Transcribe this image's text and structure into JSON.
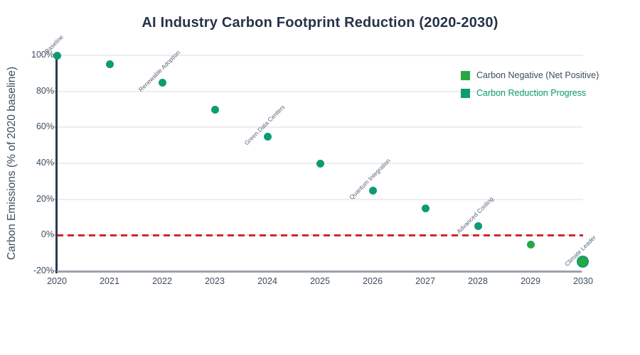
{
  "title": "AI Industry Carbon Footprint Reduction (2020-2030)",
  "y_axis": {
    "label": "Carbon Emissions (% of 2020 baseline)"
  },
  "chart_data": {
    "type": "scatter",
    "title": "AI Industry Carbon Footprint Reduction (2020-2030)",
    "xlabel": "",
    "ylabel": "Carbon Emissions (% of 2020 baseline)",
    "x": [
      2020,
      2021,
      2022,
      2023,
      2024,
      2025,
      2026,
      2027,
      2028,
      2029,
      2030
    ],
    "values": [
      100,
      95,
      85,
      70,
      55,
      40,
      25,
      15,
      5,
      -5,
      -15
    ],
    "point_series": [
      "progress",
      "progress",
      "progress",
      "progress",
      "progress",
      "progress",
      "progress",
      "progress",
      "progress",
      "negative",
      "negative"
    ],
    "series_colors": {
      "progress": "#0f9b72",
      "negative": "#27a844"
    },
    "highlight": {
      "year": 2030,
      "ring_color": "#0f9b72"
    },
    "annotations": [
      {
        "year": 2020,
        "label": "Baseline"
      },
      {
        "year": 2022,
        "label": "Renewable Adoption"
      },
      {
        "year": 2024,
        "label": "Green Data Centers"
      },
      {
        "year": 2026,
        "label": "Quantum Integration"
      },
      {
        "year": 2028,
        "label": "Advanced Cooling"
      },
      {
        "year": 2030,
        "label": "Climate Leader"
      }
    ],
    "legend": {
      "position": "top-right",
      "items": [
        {
          "label": "Carbon Negative (Net Positive)",
          "marker_color": "#27a844",
          "text_color": "#3e4c5e"
        },
        {
          "label": "Carbon Reduction Progress",
          "marker_color": "#0f9b72",
          "text_color": "#0f9b72"
        }
      ]
    },
    "x_ticks": [
      "2020",
      "2021",
      "2022",
      "2023",
      "2024",
      "2025",
      "2026",
      "2027",
      "2028",
      "2029",
      "2030"
    ],
    "y_ticks": [
      {
        "value": 100,
        "label": "100%"
      },
      {
        "value": 80,
        "label": "80%"
      },
      {
        "value": 60,
        "label": "60%"
      },
      {
        "value": 40,
        "label": "40%"
      },
      {
        "value": 20,
        "label": "20%"
      },
      {
        "value": 0,
        "label": "0%"
      },
      {
        "value": -20,
        "label": "-20%"
      }
    ],
    "xlim": [
      2020,
      2030
    ],
    "ylim": [
      -20,
      100
    ],
    "grid": "horizontal",
    "zero_line": {
      "value": 0,
      "color": "#d62728",
      "style": "dashed"
    }
  },
  "colors": {
    "title": "#253348",
    "axis_text": "#3e4c5e",
    "annotation_text": "#5a6779",
    "gridline": "#ecedef",
    "tick_mark": "#c8cdd3",
    "left_spine": "#2e3b4e",
    "bottom_spine": "#9aa3ac",
    "background": "#ffffff"
  }
}
